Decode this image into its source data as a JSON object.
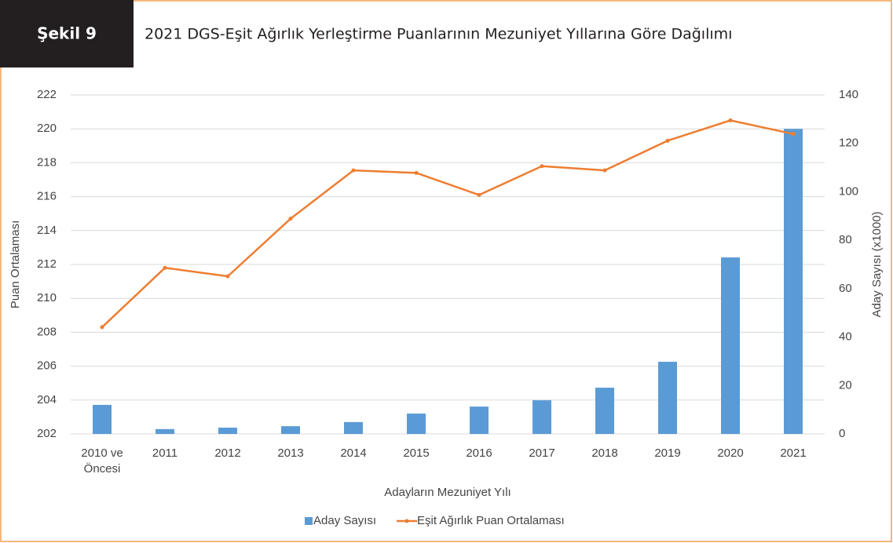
{
  "chart_data": {
    "type": "bar",
    "figure_label": "Şekil 9",
    "title": "2021 DGS-Eşit Ağırlık Yerleştirme Puanlarının Mezuniyet Yıllarına Göre Dağılımı",
    "x_label": "Adayların Mezuniyet Yılı",
    "y_label": "Puan Ortalaması",
    "y2_label": "Aday Sayısı (x1000)",
    "categories": [
      "2010 ve Öncesi",
      "2011",
      "2012",
      "2013",
      "2014",
      "2015",
      "2016",
      "2017",
      "2018",
      "2019",
      "2020",
      "2021"
    ],
    "series": [
      {
        "name": "Aday Sayısı",
        "type": "bar",
        "axis": "y2",
        "color": "#5b9bd5",
        "values": [
          12.0,
          2.0,
          2.6,
          3.2,
          4.9,
          8.4,
          11.3,
          13.9,
          19.1,
          29.8,
          72.9,
          126.0
        ]
      },
      {
        "name": "Eşit Ağırlık Puan Ortalaması",
        "type": "line",
        "axis": "y",
        "color": "#ed7d31",
        "values": [
          208.3,
          211.8,
          211.3,
          214.7,
          217.55,
          217.4,
          216.1,
          217.8,
          217.55,
          219.3,
          220.5,
          219.7
        ]
      }
    ],
    "ylim": [
      202,
      222
    ],
    "yticks": [
      202,
      204,
      206,
      208,
      210,
      212,
      214,
      216,
      218,
      220,
      222
    ],
    "y2lim": [
      0,
      140
    ],
    "y2ticks": [
      0,
      20,
      40,
      60,
      80,
      100,
      120,
      140
    ],
    "grid": true,
    "legend": "bottom"
  }
}
